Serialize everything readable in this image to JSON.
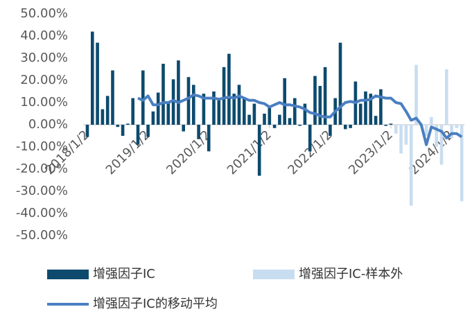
{
  "chart_data": {
    "type": "bar",
    "categories": [
      "2018/1/2",
      null,
      null,
      null,
      null,
      null,
      null,
      null,
      null,
      null,
      null,
      null,
      "2019/1/2",
      null,
      null,
      null,
      null,
      null,
      null,
      null,
      null,
      null,
      null,
      null,
      "2020/1/2",
      null,
      null,
      null,
      null,
      null,
      null,
      null,
      null,
      null,
      null,
      null,
      "2021/1/2",
      null,
      null,
      null,
      null,
      null,
      null,
      null,
      null,
      null,
      null,
      null,
      "2022/1/2",
      null,
      null,
      null,
      null,
      null,
      null,
      null,
      null,
      null,
      null,
      null,
      "2023/1/2",
      null,
      null,
      null,
      null,
      null,
      null,
      null,
      null,
      null,
      null,
      null,
      "2024/1/2",
      null,
      null
    ],
    "series": [
      {
        "name": "增强因子IC",
        "type": "bar",
        "color": "#0d4a6e",
        "values": [
          -5.5,
          42,
          37,
          7,
          13,
          24.5,
          -1,
          -5,
          0.5,
          12,
          -9,
          24.5,
          -5.5,
          6,
          14.5,
          27.5,
          10,
          20.5,
          29,
          -3,
          21.5,
          18,
          -6.5,
          14,
          -12,
          15,
          11,
          26,
          32,
          14,
          18,
          12,
          4.5,
          9.5,
          -23,
          5,
          8,
          -1.5,
          4.5,
          21,
          3,
          12,
          -0.5,
          9.5,
          -12,
          22,
          17.5,
          26,
          -5,
          12,
          37,
          -2,
          -1.5,
          19.5,
          9.5,
          15,
          14,
          4,
          16,
          -0.5,
          0.5,
          null,
          null,
          null,
          null,
          null,
          null,
          null,
          null,
          null,
          null,
          null,
          null,
          null,
          null
        ]
      },
      {
        "name": "增强因子IC-样本外",
        "type": "bar",
        "color": "#c9ddf0",
        "values": [
          null,
          null,
          null,
          null,
          null,
          null,
          null,
          null,
          null,
          null,
          null,
          null,
          null,
          null,
          null,
          null,
          null,
          null,
          null,
          null,
          null,
          null,
          null,
          null,
          null,
          null,
          null,
          null,
          null,
          null,
          null,
          null,
          null,
          null,
          null,
          null,
          null,
          null,
          null,
          null,
          null,
          null,
          null,
          null,
          null,
          null,
          null,
          null,
          null,
          null,
          null,
          null,
          null,
          null,
          null,
          null,
          null,
          null,
          null,
          null,
          null,
          -4,
          -13,
          -9,
          -36.5,
          27,
          -1,
          -5,
          3.5,
          -10,
          -18,
          25,
          -6,
          -1.5,
          -34.5
        ]
      },
      {
        "name": "增强因子IC的移动平均",
        "type": "line",
        "color": "#4a7fc1",
        "values": [
          null,
          null,
          null,
          null,
          null,
          null,
          null,
          null,
          null,
          null,
          12,
          11,
          13,
          9,
          9,
          10,
          10,
          11,
          10,
          11,
          12,
          13.5,
          13,
          12,
          12,
          12,
          11.5,
          12,
          12.5,
          12,
          13,
          12,
          11,
          11,
          10,
          9.5,
          8,
          9,
          10,
          9,
          9,
          8.5,
          8,
          7,
          5.5,
          5,
          4,
          3.5,
          3.5,
          6,
          8,
          10,
          10.5,
          10,
          11,
          11,
          11.5,
          13,
          12.5,
          12,
          12,
          10,
          9.5,
          6,
          2,
          3,
          0,
          -9,
          -1,
          -2,
          -3,
          -6,
          -4,
          -4,
          -5.5
        ]
      }
    ],
    "ylim": [
      -50,
      50
    ],
    "yticks": [
      {
        "value": -50,
        "label": "-50.00%"
      },
      {
        "value": -40,
        "label": "-40.00%"
      },
      {
        "value": -30,
        "label": "-30.00%"
      },
      {
        "value": -20,
        "label": "-20.00%"
      },
      {
        "value": -10,
        "label": "-10.00%"
      },
      {
        "value": 0,
        "label": "0.00%"
      },
      {
        "value": 10,
        "label": "10.00%"
      },
      {
        "value": 20,
        "label": "20.00%"
      },
      {
        "value": 30,
        "label": "30.00%"
      },
      {
        "value": 40,
        "label": "40.00%"
      },
      {
        "value": 50,
        "label": "50.00%"
      }
    ]
  }
}
